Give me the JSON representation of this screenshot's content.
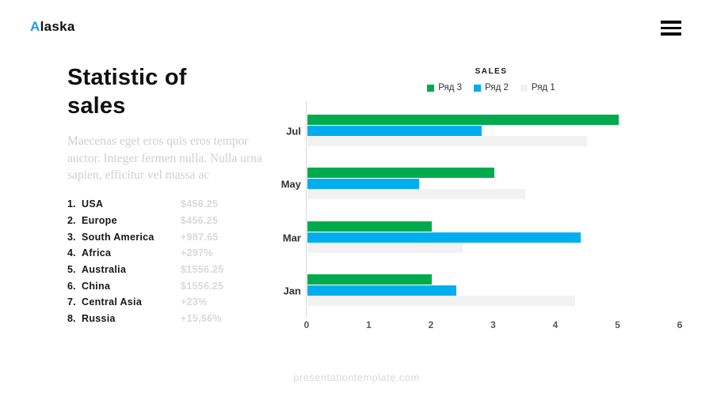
{
  "header": {
    "logo_accent": "A",
    "logo_rest": "laska",
    "logo_accent_color": "#1b9ce3"
  },
  "left": {
    "title_line1": "Statistic of",
    "title_line2": "sales",
    "description": "Maecenas eget eros quis eros tempor auctor. Integer fermen nulla. Nulla urna sapien, efficitur vel massa ac",
    "list": [
      {
        "rank": "1.",
        "name": "USA",
        "value": "$456.25"
      },
      {
        "rank": "2.",
        "name": "Europe",
        "value": "$456.25"
      },
      {
        "rank": "3.",
        "name": "South America",
        "value": "+987.65"
      },
      {
        "rank": "4.",
        "name": "Africa",
        "value": "+297%"
      },
      {
        "rank": "5.",
        "name": "Australia",
        "value": "$1556.25"
      },
      {
        "rank": "6.",
        "name": "China",
        "value": "$1556.25"
      },
      {
        "rank": "7.",
        "name": "Central Asia",
        "value": "+23%"
      },
      {
        "rank": "8.",
        "name": "Russia",
        "value": "+15,56%"
      }
    ]
  },
  "chart_data": {
    "type": "bar",
    "orientation": "horizontal",
    "title": "SALES",
    "categories": [
      "Jul",
      "May",
      "Mar",
      "Jan"
    ],
    "series": [
      {
        "name": "Ряд 3",
        "color": "#00ab4e",
        "values": [
          5.0,
          3.0,
          2.0,
          2.0
        ]
      },
      {
        "name": "Ряд 2",
        "color": "#00aeef",
        "values": [
          2.8,
          1.8,
          4.4,
          2.4
        ]
      },
      {
        "name": "Ряд 1",
        "color": "#f2f2f2",
        "values": [
          4.5,
          3.5,
          2.5,
          4.3
        ]
      }
    ],
    "xlim": [
      0,
      6
    ],
    "xticks": [
      0,
      1,
      2,
      3,
      4,
      5,
      6
    ],
    "legend_position": "top",
    "grid": false,
    "axis_color": "#d9d9d9"
  },
  "footer": {
    "watermark": "presentationtemplate.com"
  }
}
